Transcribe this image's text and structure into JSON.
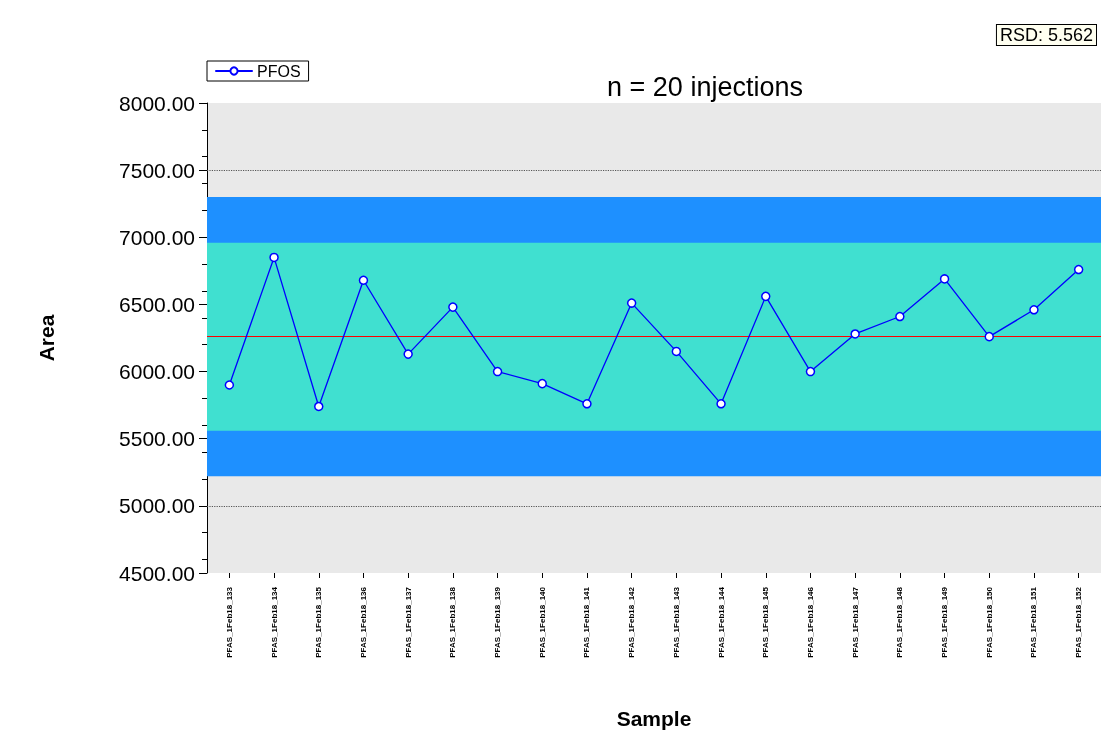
{
  "chart_data": {
    "type": "line",
    "title": "n = 20 injections",
    "xlabel": "Sample",
    "ylabel": "Area",
    "categories": [
      "PFAS_1Feb18_133",
      "PFAS_1Feb18_134",
      "PFAS_1Feb18_135",
      "PFAS_1Feb18_136",
      "PFAS_1Feb18_137",
      "PFAS_1Feb18_138",
      "PFAS_1Feb18_139",
      "PFAS_1Feb18_140",
      "PFAS_1Feb18_141",
      "PFAS_1Feb18_142",
      "PFAS_1Feb18_143",
      "PFAS_1Feb18_144",
      "PFAS_1Feb18_145",
      "PFAS_1Feb18_146",
      "PFAS_1Feb18_147",
      "PFAS_1Feb18_148",
      "PFAS_1Feb18_149",
      "PFAS_1Feb18_150",
      "PFAS_1Feb18_151",
      "PFAS_1Feb18_152"
    ],
    "series": [
      {
        "name": "PFOS",
        "color": "#0000ff",
        "values": [
          5900,
          6850,
          5740,
          6680,
          6130,
          6480,
          6000,
          5910,
          5760,
          6510,
          6150,
          5760,
          6560,
          6000,
          6280,
          6410,
          6690,
          6260,
          6460,
          6760
        ]
      }
    ],
    "ylim": [
      4500,
      8000
    ],
    "yticks": [
      {
        "value": 4500,
        "label": "4500.00"
      },
      {
        "value": 5000,
        "label": "5000.00"
      },
      {
        "value": 5500,
        "label": "5500.00"
      },
      {
        "value": 6000,
        "label": "6000.00"
      },
      {
        "value": 6500,
        "label": "6500.00"
      },
      {
        "value": 7000,
        "label": "7000.00"
      },
      {
        "value": 7500,
        "label": "7500.00"
      },
      {
        "value": 8000,
        "label": "8000.00"
      }
    ],
    "bands": [
      {
        "axis": "y",
        "from": 5220,
        "to": 7300,
        "color": "#1e90ff"
      },
      {
        "axis": "y",
        "from": 5560,
        "to": 6960,
        "color": "#40e0d0"
      }
    ],
    "ref_lines": [
      {
        "axis": "y",
        "value": 6260,
        "color": "#ff0000",
        "line_style": "solid"
      },
      {
        "axis": "y",
        "value": 7500,
        "color": "#555555",
        "line_style": "dotted"
      },
      {
        "axis": "y",
        "value": 5000,
        "color": "#555555",
        "line_style": "dotted"
      }
    ],
    "annotations": [
      "RSD: 5.562"
    ],
    "legend": "top left",
    "marker": "circle",
    "line_style": "solid",
    "grid": false
  }
}
